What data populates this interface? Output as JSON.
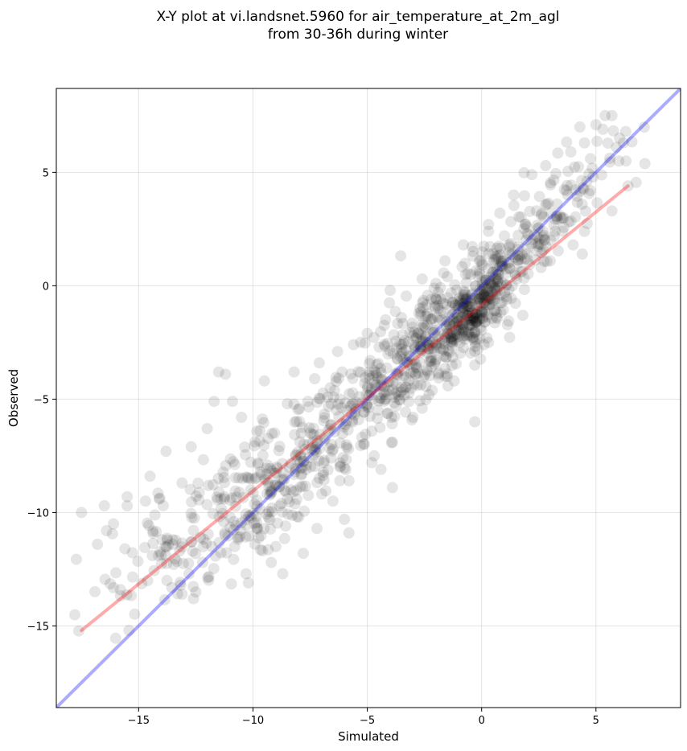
{
  "chart_data": {
    "type": "scatter",
    "title": "X-Y plot at vi.landsnet.5960 for air_temperature_at_2m_agl",
    "subtitle": "from 30-36h during winter",
    "xlabel": "Simulated",
    "ylabel": "Observed",
    "xlim": [
      -18.6,
      8.7
    ],
    "ylim": [
      -18.6,
      8.7
    ],
    "xticks": [
      -15,
      -10,
      -5,
      0,
      5
    ],
    "yticks": [
      -15,
      -10,
      -5,
      0,
      5
    ],
    "xtick_labels": [
      "−15",
      "−10",
      "−5",
      "0",
      "5"
    ],
    "ytick_labels": [
      "−15",
      "−10",
      "−5",
      "0",
      "5"
    ],
    "grid": true,
    "point_color": "#000000",
    "point_alpha": 0.1,
    "reference_line": {
      "slope": 1,
      "intercept": 0,
      "color": "#0000ff"
    },
    "fit_line": {
      "x": [
        -17.5,
        6.4
      ],
      "y": [
        -15.2,
        4.4
      ],
      "color": "#ff0000"
    },
    "point_clusters": [
      {
        "center": [
          0.0,
          -0.8
        ],
        "spread": [
          1.0,
          1.2
        ],
        "count": 260
      },
      {
        "center": [
          -2.0,
          -2.2
        ],
        "spread": [
          1.5,
          1.5
        ],
        "count": 230
      },
      {
        "center": [
          -5.0,
          -5.0
        ],
        "spread": [
          1.8,
          1.8
        ],
        "count": 200
      },
      {
        "center": [
          -8.5,
          -8.2
        ],
        "spread": [
          1.5,
          1.7
        ],
        "count": 150
      },
      {
        "center": [
          -11.5,
          -10.0
        ],
        "spread": [
          1.7,
          1.6
        ],
        "count": 110
      },
      {
        "center": [
          3.0,
          3.0
        ],
        "spread": [
          1.6,
          1.6
        ],
        "count": 120
      },
      {
        "center": [
          -14.0,
          -11.5
        ],
        "spread": [
          1.8,
          1.6
        ],
        "count": 40
      }
    ],
    "points": [
      [
        -17.5,
        -10.0
      ],
      [
        -16.5,
        -9.7
      ],
      [
        -16.8,
        -11.4
      ],
      [
        -16.4,
        -10.8
      ],
      [
        -15.6,
        -11.6
      ],
      [
        -15.5,
        -9.3
      ],
      [
        -15.8,
        -13.4
      ],
      [
        -12.6,
        -13.8
      ],
      [
        -12.5,
        -13.5
      ],
      [
        -10.2,
        -13.1
      ],
      [
        -10.3,
        -12.7
      ],
      [
        -8.7,
        -12.7
      ],
      [
        -7.8,
        -11.8
      ],
      [
        -12.7,
        -7.1
      ],
      [
        -13.8,
        -7.3
      ],
      [
        -14.5,
        -8.4
      ],
      [
        -13.1,
        -8.7
      ],
      [
        -12.0,
        -6.3
      ],
      [
        -11.7,
        -5.1
      ],
      [
        -11.5,
        -3.8
      ],
      [
        -11.2,
        -3.9
      ],
      [
        -9.5,
        -4.2
      ],
      [
        -8.2,
        -3.8
      ],
      [
        -7.1,
        -3.4
      ],
      [
        -6.3,
        -2.9
      ],
      [
        -5.6,
        -2.6
      ],
      [
        -5.0,
        -2.1
      ],
      [
        -4.2,
        -1.5
      ],
      [
        -4.0,
        -0.2
      ],
      [
        -2.6,
        0.3
      ],
      [
        -1.9,
        -0.3
      ],
      [
        -1.6,
        1.1
      ],
      [
        -0.8,
        1.8
      ],
      [
        -0.7,
        0.5
      ],
      [
        0.3,
        2.4
      ],
      [
        0.3,
        2.7
      ],
      [
        0.8,
        3.2
      ],
      [
        1.4,
        4.0
      ],
      [
        2.2,
        4.9
      ],
      [
        2.8,
        5.3
      ],
      [
        3.9,
        5.9
      ],
      [
        4.3,
        7.0
      ],
      [
        4.5,
        6.3
      ],
      [
        5.0,
        7.1
      ],
      [
        5.4,
        7.5
      ],
      [
        5.7,
        7.5
      ],
      [
        5.3,
        6.9
      ],
      [
        5.9,
        6.1
      ],
      [
        6.2,
        6.3
      ],
      [
        6.3,
        6.8
      ],
      [
        6.4,
        4.4
      ],
      [
        6.0,
        5.5
      ],
      [
        5.7,
        3.3
      ],
      [
        4.5,
        2.4
      ],
      [
        4.4,
        1.4
      ],
      [
        3.0,
        1.1
      ],
      [
        4.0,
        1.8
      ],
      [
        2.6,
        0.8
      ],
      [
        1.8,
        -1.3
      ],
      [
        0.3,
        -2.5
      ],
      [
        -0.3,
        -3.5
      ],
      [
        -0.3,
        -6.0
      ],
      [
        -1.2,
        -4.2
      ],
      [
        -1.5,
        -4.0
      ],
      [
        -2.3,
        -4.8
      ],
      [
        -2.6,
        -5.4
      ],
      [
        -3.0,
        -5.8
      ],
      [
        -3.9,
        -6.9
      ],
      [
        -4.7,
        -7.5
      ],
      [
        -4.4,
        -8.1
      ],
      [
        -4.8,
        -7.8
      ],
      [
        -3.9,
        -8.9
      ],
      [
        -5.8,
        -8.6
      ],
      [
        -6.5,
        -9.5
      ],
      [
        -6.0,
        -10.3
      ],
      [
        -5.8,
        -10.9
      ],
      [
        -7.2,
        -10.7
      ],
      [
        -8.0,
        -10.2
      ],
      [
        -9.2,
        -12.2
      ],
      [
        -9.0,
        -11.5
      ],
      [
        -10.8,
        -11.5
      ],
      [
        -11.8,
        -11.5
      ],
      [
        -12.2,
        -12.2
      ],
      [
        -12.8,
        -12.7
      ],
      [
        -13.1,
        -13.6
      ],
      [
        -13.5,
        -11.2
      ],
      [
        -14.4,
        -11.9
      ],
      [
        -14.1,
        -9.4
      ],
      [
        -14.7,
        -9.5
      ],
      [
        -15.5,
        -9.7
      ],
      [
        -16.1,
        -10.5
      ],
      [
        -12.3,
        -11.1
      ],
      [
        -11.0,
        -10.2
      ],
      [
        -10.1,
        -9.0
      ],
      [
        -9.7,
        -6.4
      ],
      [
        -10.5,
        -5.8
      ],
      [
        -10.9,
        -5.1
      ],
      [
        -8.5,
        -5.2
      ],
      [
        -7.6,
        -5.1
      ],
      [
        -7.3,
        -4.1
      ],
      [
        -6.1,
        -3.8
      ],
      [
        -3.5,
        -2.6
      ],
      [
        -3.0,
        -2.2
      ],
      [
        -2.7,
        -1.0
      ],
      [
        -1.5,
        0.4
      ],
      [
        -0.1,
        1.1
      ],
      [
        0.6,
        1.3
      ],
      [
        1.2,
        1.8
      ],
      [
        1.9,
        2.7
      ],
      [
        2.4,
        3.3
      ],
      [
        3.3,
        3.6
      ],
      [
        3.7,
        4.2
      ],
      [
        4.6,
        4.6
      ],
      [
        1.1,
        -0.6
      ],
      [
        0.7,
        0.2
      ]
    ]
  }
}
